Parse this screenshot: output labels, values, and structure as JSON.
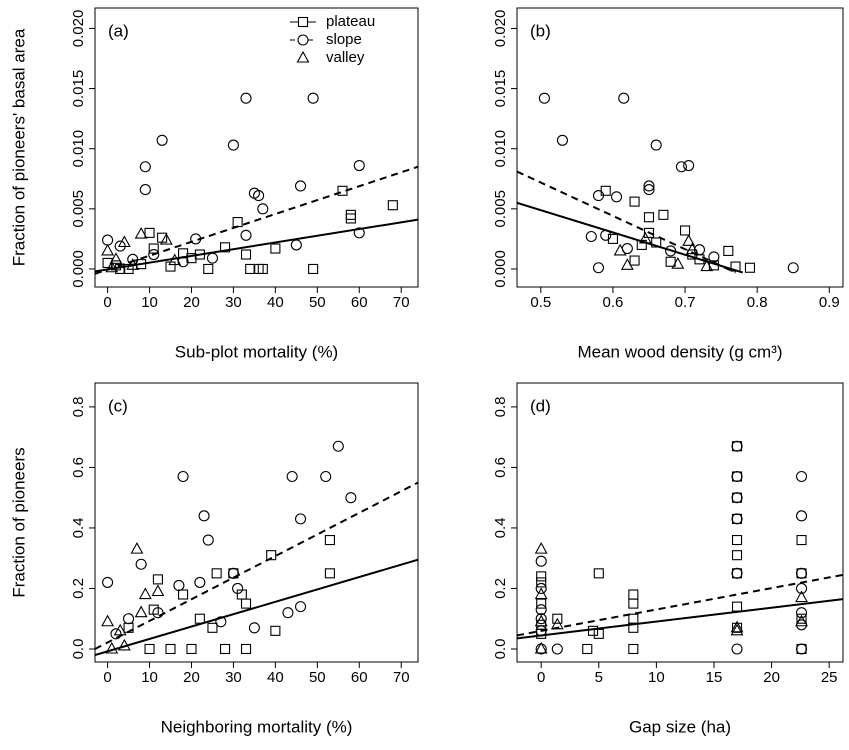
{
  "chart_data": [
    {
      "type": "scatter",
      "label": "(a)",
      "xlabel": "Sub-plot mortality (%)",
      "ylabel": "Fraction of pioneers' basal area",
      "xlim": [
        -3,
        74
      ],
      "ylim": [
        -0.0015,
        0.0217
      ],
      "xticks": [
        0,
        10,
        20,
        30,
        40,
        50,
        60,
        70
      ],
      "yticks": [
        {
          "value": 0,
          "label": "0.000"
        },
        {
          "value": 0.005,
          "label": "0.005"
        },
        {
          "value": 0.01,
          "label": "0.010"
        },
        {
          "value": 0.015,
          "label": "0.015"
        },
        {
          "value": 0.02,
          "label": "0.020"
        }
      ],
      "legend": "topright",
      "series": [
        {
          "name": "plateau",
          "marker": "square",
          "linestyle": "solid",
          "x": [
            0,
            2,
            5,
            10,
            11,
            13,
            15,
            18,
            20,
            24,
            28,
            31,
            33,
            37,
            40,
            49,
            56,
            58,
            58,
            68,
            34,
            36,
            3,
            8,
            22
          ],
          "y": [
            0.0005,
            0.0003,
            0,
            0.003,
            0.0017,
            0.0026,
            0.0002,
            0.0013,
            0.0009,
            0,
            0.0018,
            0.0039,
            0.0012,
            0,
            0.0017,
            0,
            0.0065,
            0.0045,
            0.0042,
            0.0053,
            0,
            0,
            0,
            0.0004,
            0.0012
          ],
          "line": {
            "x": [
              -3,
              74
            ],
            "y": [
              -0.0002,
              0.0041
            ]
          }
        },
        {
          "name": "slope",
          "marker": "circle",
          "linestyle": "dashed",
          "x": [
            0,
            3,
            9,
            9,
            13,
            30,
            33,
            35,
            36,
            37,
            46,
            49,
            60,
            60,
            45,
            25,
            18,
            6,
            21,
            33,
            11
          ],
          "y": [
            0.0024,
            0.0019,
            0.0085,
            0.0066,
            0.0107,
            0.0103,
            0.0142,
            0.0063,
            0.0061,
            0.005,
            0.0069,
            0.0142,
            0.0086,
            0.003,
            0.002,
            0.0009,
            0.0006,
            0.0008,
            0.0025,
            0.0028,
            0.0012
          ],
          "line": {
            "x": [
              -3,
              74
            ],
            "y": [
              -0.0004,
              0.0085
            ]
          }
        },
        {
          "name": "valley",
          "marker": "triangle",
          "x": [
            0,
            2,
            4,
            8,
            14,
            6,
            1,
            16
          ],
          "y": [
            0.0015,
            0.0008,
            0.0022,
            0.0029,
            0.0024,
            0.0003,
            0.0001,
            0.0007
          ]
        }
      ]
    },
    {
      "type": "scatter",
      "label": "(b)",
      "xlabel": "Mean wood density (g cm³)",
      "xlim": [
        0.467,
        0.919
      ],
      "ylim": [
        -0.0015,
        0.0217
      ],
      "xticks": [
        0.5,
        0.6,
        0.7,
        0.8,
        0.9
      ],
      "yticks": [
        {
          "value": 0,
          "label": "0.000"
        },
        {
          "value": 0.005,
          "label": "0.005"
        },
        {
          "value": 0.01,
          "label": "0.010"
        },
        {
          "value": 0.015,
          "label": "0.015"
        },
        {
          "value": 0.02,
          "label": "0.020"
        }
      ],
      "series": [
        {
          "marker": "square",
          "linestyle": "solid",
          "x": [
            0.59,
            0.6,
            0.63,
            0.65,
            0.65,
            0.66,
            0.67,
            0.7,
            0.71,
            0.72,
            0.74,
            0.76,
            0.77,
            0.79,
            0.64,
            0.68,
            0.63
          ],
          "y": [
            0.0065,
            0.0025,
            0.0056,
            0.0043,
            0.003,
            0.0022,
            0.0045,
            0.0032,
            0.0012,
            0.0008,
            0.0003,
            0.0015,
            0.0002,
            0.0001,
            0.002,
            0.0006,
            0.0007
          ],
          "line": {
            "x": [
              0.467,
              0.78
            ],
            "y": [
              0.0055,
              -0.0003
            ]
          }
        },
        {
          "marker": "circle",
          "linestyle": "dashed",
          "x": [
            0.505,
            0.53,
            0.615,
            0.66,
            0.695,
            0.705,
            0.65,
            0.65,
            0.605,
            0.58,
            0.57,
            0.59,
            0.85,
            0.58,
            0.62,
            0.72,
            0.74,
            0.68
          ],
          "y": [
            0.0142,
            0.0107,
            0.0142,
            0.0103,
            0.0085,
            0.0086,
            0.0069,
            0.0066,
            0.006,
            0.0061,
            0.0027,
            0.0028,
            0.0001,
            0.0001,
            0.0017,
            0.0016,
            0.001,
            0.0015
          ],
          "line": {
            "x": [
              0.467,
              0.77
            ],
            "y": [
              0.0081,
              -0.0003
            ]
          }
        },
        {
          "marker": "triangle",
          "x": [
            0.61,
            0.62,
            0.645,
            0.705,
            0.71,
            0.69,
            0.73
          ],
          "y": [
            0.0015,
            0.0003,
            0.0025,
            0.0023,
            0.0016,
            0.0004,
            0.0002
          ]
        }
      ]
    },
    {
      "type": "scatter",
      "label": "(c)",
      "xlabel": "Neighboring mortality (%)",
      "ylabel": "Fraction of pioneers",
      "xlim": [
        -3,
        74
      ],
      "ylim": [
        -0.043,
        0.879
      ],
      "xticks": [
        0,
        10,
        20,
        30,
        40,
        50,
        60,
        70
      ],
      "yticks": [
        {
          "value": 0,
          "label": "0.0"
        },
        {
          "value": 0.2,
          "label": "0.2"
        },
        {
          "value": 0.4,
          "label": "0.4"
        },
        {
          "value": 0.6,
          "label": "0.6"
        },
        {
          "value": 0.8,
          "label": "0.8"
        }
      ],
      "series": [
        {
          "marker": "square",
          "linestyle": "solid",
          "x": [
            12,
            18,
            22,
            26,
            30,
            32,
            33,
            39,
            40,
            53,
            53,
            25,
            15,
            20,
            28,
            33,
            10,
            5,
            11
          ],
          "y": [
            0.23,
            0.18,
            0.1,
            0.25,
            0.25,
            0.18,
            0.15,
            0.31,
            0.06,
            0.36,
            0.25,
            0.07,
            0,
            0,
            0,
            0,
            0,
            0.07,
            0.13
          ],
          "line": {
            "x": [
              -3,
              74
            ],
            "y": [
              -0.02,
              0.295
            ]
          }
        },
        {
          "marker": "circle",
          "linestyle": "dashed",
          "x": [
            0,
            18,
            23,
            24,
            44,
            46,
            52,
            55,
            58,
            17,
            8,
            30,
            31,
            43,
            46,
            22,
            12,
            5,
            2,
            27,
            35
          ],
          "y": [
            0.22,
            0.57,
            0.44,
            0.36,
            0.57,
            0.43,
            0.57,
            0.67,
            0.5,
            0.21,
            0.28,
            0.25,
            0.2,
            0.12,
            0.14,
            0.22,
            0.12,
            0.1,
            0.05,
            0.09,
            0.07
          ],
          "line": {
            "x": [
              -3,
              74
            ],
            "y": [
              0.0,
              0.55
            ]
          }
        },
        {
          "marker": "triangle",
          "x": [
            0,
            7,
            9,
            12,
            3,
            8,
            1,
            4
          ],
          "y": [
            0.09,
            0.33,
            0.18,
            0.19,
            0.06,
            0.12,
            0,
            0.01
          ]
        }
      ]
    },
    {
      "type": "scatter",
      "label": "(d)",
      "xlabel": "Gap size (ha)",
      "xlim": [
        -2.1,
        26.2
      ],
      "ylim": [
        -0.043,
        0.879
      ],
      "xticks": [
        0,
        5,
        10,
        15,
        20,
        25
      ],
      "yticks": [
        {
          "value": 0,
          "label": "0.0"
        },
        {
          "value": 0.2,
          "label": "0.2"
        },
        {
          "value": 0.4,
          "label": "0.4"
        },
        {
          "value": 0.6,
          "label": "0.6"
        },
        {
          "value": 0.8,
          "label": "0.8"
        }
      ],
      "series": [
        {
          "marker": "square",
          "linestyle": "solid",
          "x": [
            0,
            0,
            0,
            0,
            0,
            1.4,
            4,
            4.5,
            5,
            5,
            8,
            8,
            8,
            8,
            8,
            17,
            17,
            17,
            17,
            17,
            17,
            17,
            17,
            17,
            22.6,
            22.6,
            22.6,
            22.6
          ],
          "y": [
            0.22,
            0.24,
            0.15,
            0.08,
            0.05,
            0.1,
            0,
            0.06,
            0.25,
            0.05,
            0.18,
            0.15,
            0.1,
            0.07,
            0,
            0.67,
            0.57,
            0.5,
            0.43,
            0.36,
            0.31,
            0.25,
            0.14,
            0.07,
            0.36,
            0.25,
            0.1,
            0
          ],
          "line": {
            "x": [
              -2.1,
              26.2
            ],
            "y": [
              0.035,
              0.165
            ]
          }
        },
        {
          "marker": "circle",
          "linestyle": "dashed",
          "x": [
            0,
            0,
            0,
            0,
            0,
            0,
            1.4,
            17,
            17,
            17,
            17,
            17,
            17,
            22.6,
            22.6,
            22.6,
            22.6,
            22.6,
            22.6,
            22.6
          ],
          "y": [
            0.29,
            0.2,
            0.13,
            0.1,
            0.06,
            0,
            0,
            0.67,
            0.57,
            0.5,
            0.43,
            0.25,
            0,
            0.57,
            0.44,
            0.25,
            0.2,
            0.12,
            0.08,
            0
          ],
          "line": {
            "x": [
              -2.1,
              26.2
            ],
            "y": [
              0.045,
              0.245
            ]
          }
        },
        {
          "marker": "triangle",
          "x": [
            0,
            0,
            0,
            0,
            1.4,
            17,
            17,
            22.6,
            22.6
          ],
          "y": [
            0.33,
            0.18,
            0.09,
            0,
            0.08,
            0.07,
            0.06,
            0.17,
            0.09
          ]
        }
      ]
    }
  ]
}
